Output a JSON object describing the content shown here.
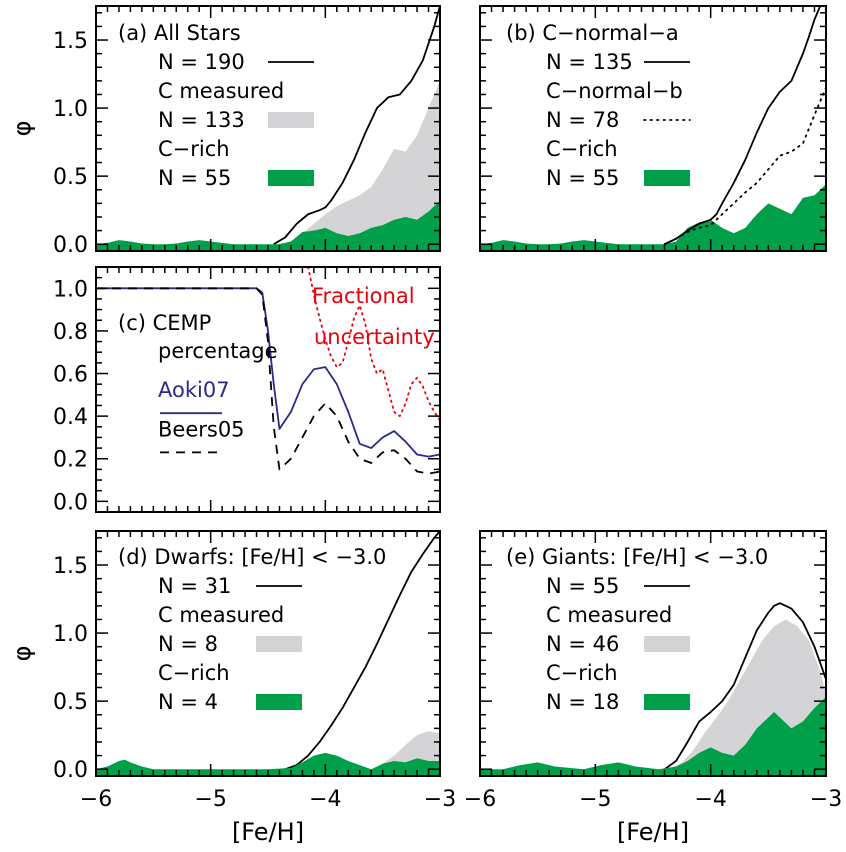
{
  "chart_data": [
    {
      "id": "a",
      "type": "area",
      "xlim": [
        -6,
        -3
      ],
      "ylim": [
        -0.05,
        1.75
      ],
      "yticks": [
        "0.0",
        "0.5",
        "1.0",
        "1.5"
      ],
      "xticks": [],
      "ylabel": "φ",
      "xlabel": "",
      "legend": [
        {
          "text": "(a) All Stars",
          "swatch": "none"
        },
        {
          "text": "N = 190",
          "swatch": "line"
        },
        {
          "text": "C measured",
          "swatch": "none"
        },
        {
          "text": "N = 133",
          "swatch": "gray"
        },
        {
          "text": "C−rich",
          "swatch": "none"
        },
        {
          "text": "N = 55",
          "swatch": "green"
        }
      ],
      "series": [
        {
          "style": "fill-gray",
          "x": [
            -4.45,
            -4.3,
            -4.2,
            -4.1,
            -4.0,
            -3.9,
            -3.8,
            -3.7,
            -3.6,
            -3.5,
            -3.4,
            -3.3,
            -3.2,
            -3.1,
            -3.0
          ],
          "y": [
            0.0,
            0.02,
            0.08,
            0.15,
            0.22,
            0.28,
            0.32,
            0.36,
            0.42,
            0.55,
            0.7,
            0.68,
            0.8,
            1.0,
            1.2
          ]
        },
        {
          "style": "line-solid",
          "x": [
            -4.45,
            -4.35,
            -4.25,
            -4.15,
            -4.05,
            -4.0,
            -3.95,
            -3.85,
            -3.75,
            -3.65,
            -3.55,
            -3.45,
            -3.35,
            -3.25,
            -3.15,
            -3.05,
            -3.0
          ],
          "y": [
            0.0,
            0.05,
            0.15,
            0.22,
            0.25,
            0.27,
            0.32,
            0.45,
            0.62,
            0.82,
            1.0,
            1.08,
            1.1,
            1.2,
            1.35,
            1.6,
            1.75
          ]
        },
        {
          "style": "fill-green",
          "x": [
            -6.0,
            -5.9,
            -5.8,
            -5.7,
            -5.6,
            -5.5,
            -5.4,
            -5.3,
            -5.2,
            -5.1,
            -5.0,
            -4.9,
            -4.8,
            -4.7,
            -4.6,
            -4.5,
            -4.4,
            -4.3,
            -4.2,
            -4.1,
            -4.0,
            -3.9,
            -3.8,
            -3.7,
            -3.6,
            -3.5,
            -3.4,
            -3.3,
            -3.2,
            -3.1,
            -3.0
          ],
          "y": [
            0.0,
            0.01,
            0.03,
            0.02,
            0.005,
            0.0,
            0.0,
            0.005,
            0.02,
            0.03,
            0.02,
            0.01,
            0.0,
            0.0,
            0.0,
            0.0,
            0.0,
            0.02,
            0.09,
            0.1,
            0.12,
            0.08,
            0.06,
            0.08,
            0.12,
            0.14,
            0.18,
            0.2,
            0.18,
            0.24,
            0.32
          ]
        }
      ]
    },
    {
      "id": "b",
      "type": "area",
      "xlim": [
        -6,
        -3
      ],
      "ylim": [
        -0.05,
        1.75
      ],
      "yticks": [
        "",
        "",
        "",
        ""
      ],
      "xticks": [],
      "ylabel": "",
      "xlabel": "",
      "legend": [
        {
          "text": "(b) C−normal−a",
          "swatch": "none"
        },
        {
          "text": "N = 135",
          "swatch": "line"
        },
        {
          "text": "C−normal−b",
          "swatch": "none"
        },
        {
          "text": "N = 78",
          "swatch": "dotted"
        },
        {
          "text": "C−rich",
          "swatch": "none"
        },
        {
          "text": "N = 55",
          "swatch": "green"
        }
      ],
      "series": [
        {
          "style": "fill-green",
          "x": [
            -6.0,
            -5.9,
            -5.8,
            -5.7,
            -5.6,
            -5.5,
            -5.4,
            -5.3,
            -5.2,
            -5.1,
            -5.0,
            -4.9,
            -4.8,
            -4.7,
            -4.6,
            -4.5,
            -4.4,
            -4.3,
            -4.2,
            -4.1,
            -4.0,
            -3.9,
            -3.8,
            -3.7,
            -3.6,
            -3.5,
            -3.4,
            -3.3,
            -3.2,
            -3.1,
            -3.0
          ],
          "y": [
            0.0,
            0.01,
            0.03,
            0.02,
            0.005,
            0.0,
            0.0,
            0.005,
            0.02,
            0.03,
            0.02,
            0.01,
            0.0,
            0.0,
            0.0,
            0.0,
            0.0,
            0.02,
            0.12,
            0.16,
            0.18,
            0.12,
            0.08,
            0.12,
            0.22,
            0.3,
            0.26,
            0.22,
            0.34,
            0.36,
            0.44
          ]
        },
        {
          "style": "line-solid",
          "x": [
            -4.4,
            -4.3,
            -4.2,
            -4.1,
            -4.0,
            -3.95,
            -3.9,
            -3.8,
            -3.7,
            -3.6,
            -3.5,
            -3.4,
            -3.3,
            -3.2,
            -3.15,
            -3.1,
            -3.05
          ],
          "y": [
            0.0,
            0.04,
            0.1,
            0.15,
            0.18,
            0.22,
            0.3,
            0.45,
            0.62,
            0.82,
            1.0,
            1.12,
            1.2,
            1.4,
            1.52,
            1.65,
            1.75
          ]
        },
        {
          "style": "line-dotted",
          "x": [
            -4.4,
            -4.3,
            -4.2,
            -4.1,
            -4.0,
            -3.9,
            -3.8,
            -3.7,
            -3.6,
            -3.5,
            -3.4,
            -3.3,
            -3.2,
            -3.1,
            -3.0
          ],
          "y": [
            0.0,
            0.04,
            0.09,
            0.12,
            0.14,
            0.22,
            0.3,
            0.38,
            0.45,
            0.55,
            0.65,
            0.68,
            0.74,
            0.95,
            1.15
          ]
        }
      ]
    },
    {
      "id": "c",
      "type": "line",
      "xlim": [
        -6,
        -3
      ],
      "ylim": [
        -0.05,
        1.1
      ],
      "yticks": [
        "0.0",
        "0.2",
        "0.4",
        "0.6",
        "0.8",
        "1.0"
      ],
      "xticks": [],
      "ylabel": "",
      "xlabel": "",
      "legend": [
        {
          "text": "(c) CEMP",
          "swatch": "none"
        },
        {
          "text": "percentage",
          "swatch": "none"
        },
        {
          "text": "Aoki07",
          "swatch": "blue-line"
        },
        {
          "text": "Beers05",
          "swatch": "dashed"
        }
      ],
      "annotations": [
        {
          "text": "Fractional",
          "color": "#e8000b"
        },
        {
          "text": "uncertainty",
          "color": "#e8000b"
        }
      ],
      "series": [
        {
          "style": "line-blue",
          "x": [
            -6.0,
            -5.0,
            -4.6,
            -4.55,
            -4.5,
            -4.45,
            -4.4,
            -4.3,
            -4.2,
            -4.1,
            -4.0,
            -3.9,
            -3.8,
            -3.7,
            -3.6,
            -3.5,
            -3.4,
            -3.3,
            -3.2,
            -3.1,
            -3.0
          ],
          "y": [
            1.0,
            1.0,
            1.0,
            0.98,
            0.8,
            0.55,
            0.34,
            0.42,
            0.55,
            0.62,
            0.63,
            0.55,
            0.42,
            0.27,
            0.25,
            0.3,
            0.33,
            0.28,
            0.22,
            0.21,
            0.22
          ]
        },
        {
          "style": "line-dashed",
          "x": [
            -6.0,
            -5.0,
            -4.6,
            -4.55,
            -4.5,
            -4.45,
            -4.4,
            -4.3,
            -4.2,
            -4.1,
            -4.0,
            -3.9,
            -3.8,
            -3.7,
            -3.6,
            -3.5,
            -3.4,
            -3.3,
            -3.2,
            -3.1,
            -3.0
          ],
          "y": [
            1.0,
            1.0,
            1.0,
            0.97,
            0.75,
            0.35,
            0.15,
            0.2,
            0.3,
            0.4,
            0.46,
            0.4,
            0.28,
            0.2,
            0.18,
            0.23,
            0.24,
            0.2,
            0.14,
            0.13,
            0.14
          ]
        },
        {
          "style": "line-red-dotted",
          "x": [
            -4.15,
            -4.1,
            -4.05,
            -4.0,
            -3.95,
            -3.9,
            -3.85,
            -3.8,
            -3.75,
            -3.7,
            -3.65,
            -3.6,
            -3.55,
            -3.5,
            -3.45,
            -3.4,
            -3.35,
            -3.3,
            -3.25,
            -3.2,
            -3.15,
            -3.1,
            -3.05,
            -3.0
          ],
          "y": [
            1.1,
            0.97,
            0.86,
            0.76,
            0.68,
            0.63,
            0.65,
            0.75,
            0.86,
            0.92,
            0.83,
            0.67,
            0.6,
            0.62,
            0.52,
            0.42,
            0.4,
            0.46,
            0.55,
            0.58,
            0.54,
            0.47,
            0.42,
            0.38
          ]
        }
      ]
    },
    {
      "id": "d",
      "type": "area",
      "xlim": [
        -6,
        -3
      ],
      "ylim": [
        -0.05,
        1.75
      ],
      "yticks": [
        "0.0",
        "0.5",
        "1.0",
        "1.5"
      ],
      "xticks": [
        "−6",
        "−5",
        "−4",
        "−3"
      ],
      "ylabel": "φ",
      "xlabel": "[Fe/H]",
      "legend": [
        {
          "text": "(d) Dwarfs: [Fe/H] < −3.0",
          "swatch": "none"
        },
        {
          "text": "N = 31",
          "swatch": "line"
        },
        {
          "text": "C measured",
          "swatch": "none"
        },
        {
          "text": "N = 8",
          "swatch": "gray"
        },
        {
          "text": "C−rich",
          "swatch": "none"
        },
        {
          "text": "N = 4",
          "swatch": "green"
        }
      ],
      "series": [
        {
          "style": "fill-gray",
          "x": [
            -3.55,
            -3.5,
            -3.4,
            -3.3,
            -3.2,
            -3.1,
            -3.0
          ],
          "y": [
            0.0,
            0.04,
            0.1,
            0.18,
            0.25,
            0.28,
            0.26
          ]
        },
        {
          "style": "line-solid",
          "x": [
            -4.35,
            -4.25,
            -4.15,
            -4.05,
            -3.95,
            -3.85,
            -3.75,
            -3.65,
            -3.55,
            -3.45,
            -3.35,
            -3.25,
            -3.15,
            -3.05,
            -3.0
          ],
          "y": [
            0.0,
            0.03,
            0.1,
            0.2,
            0.32,
            0.45,
            0.6,
            0.75,
            0.92,
            1.1,
            1.28,
            1.45,
            1.58,
            1.7,
            1.75
          ]
        },
        {
          "style": "fill-green",
          "x": [
            -6.0,
            -5.9,
            -5.8,
            -5.75,
            -5.7,
            -5.6,
            -5.5,
            -4.5,
            -4.3,
            -4.2,
            -4.1,
            -4.0,
            -3.9,
            -3.8,
            -3.7,
            -3.6,
            -3.5,
            -3.4,
            -3.3,
            -3.2,
            -3.1,
            -3.0
          ],
          "y": [
            0.0,
            0.02,
            0.06,
            0.07,
            0.05,
            0.02,
            0.0,
            0.0,
            0.01,
            0.05,
            0.1,
            0.12,
            0.1,
            0.06,
            0.03,
            0.0,
            0.04,
            0.06,
            0.05,
            0.08,
            0.06,
            0.06
          ]
        }
      ]
    },
    {
      "id": "e",
      "type": "area",
      "xlim": [
        -6,
        -3
      ],
      "ylim": [
        -0.05,
        1.75
      ],
      "yticks": [
        "",
        "",
        "",
        ""
      ],
      "xticks": [
        "−6",
        "−5",
        "−4",
        "−3"
      ],
      "ylabel": "",
      "xlabel": "[Fe/H]",
      "legend": [
        {
          "text": "(e) Giants: [Fe/H] < −3.0",
          "swatch": "none"
        },
        {
          "text": "N = 55",
          "swatch": "line"
        },
        {
          "text": "C measured",
          "swatch": "none"
        },
        {
          "text": "N = 46",
          "swatch": "gray"
        },
        {
          "text": "C−rich",
          "swatch": "none"
        },
        {
          "text": "N = 18",
          "swatch": "green"
        }
      ],
      "series": [
        {
          "style": "fill-gray",
          "x": [
            -4.35,
            -4.25,
            -4.15,
            -4.05,
            -3.95,
            -3.85,
            -3.75,
            -3.65,
            -3.55,
            -3.45,
            -3.35,
            -3.25,
            -3.15,
            -3.05,
            -3.0
          ],
          "y": [
            0.0,
            0.05,
            0.14,
            0.27,
            0.38,
            0.5,
            0.65,
            0.8,
            0.95,
            1.05,
            1.1,
            1.05,
            0.95,
            0.72,
            0.55
          ]
        },
        {
          "style": "line-solid",
          "x": [
            -4.4,
            -4.3,
            -4.2,
            -4.1,
            -4.0,
            -3.9,
            -3.8,
            -3.7,
            -3.6,
            -3.5,
            -3.45,
            -3.4,
            -3.35,
            -3.3,
            -3.2,
            -3.1,
            -3.0
          ],
          "y": [
            0.0,
            0.06,
            0.2,
            0.35,
            0.42,
            0.5,
            0.62,
            0.82,
            1.02,
            1.15,
            1.2,
            1.22,
            1.2,
            1.18,
            1.08,
            0.9,
            0.66
          ]
        },
        {
          "style": "fill-green",
          "x": [
            -6.0,
            -5.8,
            -5.65,
            -5.5,
            -5.35,
            -5.1,
            -4.95,
            -4.8,
            -4.65,
            -4.45,
            -4.3,
            -4.2,
            -4.1,
            -4.0,
            -3.9,
            -3.8,
            -3.7,
            -3.6,
            -3.5,
            -3.45,
            -3.4,
            -3.3,
            -3.2,
            -3.1,
            -3.0
          ],
          "y": [
            0.0,
            0.0,
            0.03,
            0.05,
            0.02,
            0.0,
            0.03,
            0.05,
            0.02,
            0.0,
            0.02,
            0.06,
            0.12,
            0.16,
            0.12,
            0.1,
            0.18,
            0.3,
            0.38,
            0.42,
            0.38,
            0.3,
            0.35,
            0.45,
            0.53
          ]
        }
      ]
    }
  ],
  "colors": {
    "gray_fill": "#d4d4d6",
    "green_fill": "#00a04a",
    "aoki_line": "#2a2a8c",
    "uncertainty_line": "#e8000b"
  }
}
